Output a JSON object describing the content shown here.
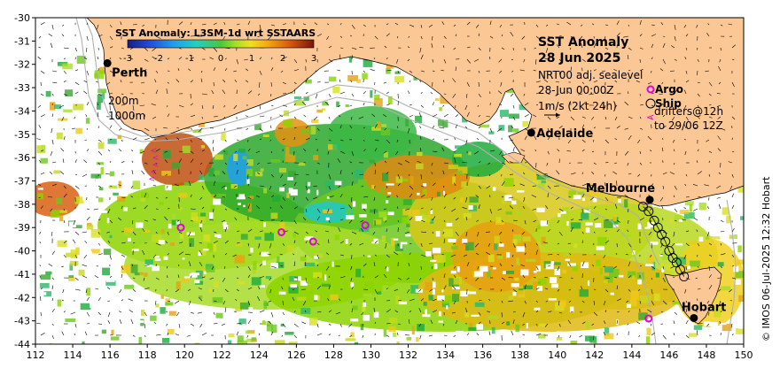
{
  "map": {
    "title": "SST Anomaly",
    "date": "28 Jun 2025",
    "product_line": "NRT00 adj. sealevel",
    "time_line": "28-Jun 00:00Z",
    "current_scale": "1m/s (2kt 24h)",
    "lon_min": 112,
    "lon_max": 150,
    "lat_min": -44,
    "lat_max": -30,
    "lon_ticks": [
      "112",
      "114",
      "116",
      "118",
      "120",
      "122",
      "124",
      "126",
      "128",
      "130",
      "132",
      "134",
      "136",
      "138",
      "140",
      "142",
      "144",
      "146",
      "148",
      "150"
    ],
    "lat_ticks": [
      "-30",
      "-31",
      "-32",
      "-33",
      "-34",
      "-35",
      "-36",
      "-37",
      "-38",
      "-39",
      "-40",
      "-41",
      "-42",
      "-43",
      "-44"
    ],
    "bathymetry_labels": [
      "200m",
      "1000m"
    ],
    "credit": "© IMOS 06-Jul-2025 12:32 Hobart",
    "land_color": "#fbc795",
    "colors": {
      "warm": "#e07000",
      "neutral": "#8cd400",
      "cool": "#00b4c8",
      "argo": "#e000e0"
    }
  },
  "colorbar": {
    "title": "SST Anomaly: L3SM-1d wrt SSTAARS",
    "ticks": [
      "-3",
      "-2",
      "-1",
      "0",
      "1",
      "2",
      "3"
    ],
    "min": -3,
    "max": 3
  },
  "legend": {
    "argo": "Argo",
    "ship": "Ship",
    "drifters_line1": "drifters@12h",
    "drifters_line2": "to 29/06 12Z"
  },
  "cities": [
    {
      "name": "Perth",
      "lon": 115.86,
      "lat": -31.95
    },
    {
      "name": "Adelaide",
      "lon": 138.6,
      "lat": -34.93
    },
    {
      "name": "Melbourne",
      "lon": 144.96,
      "lat": -37.81
    },
    {
      "name": "Hobart",
      "lon": 147.33,
      "lat": -42.88
    }
  ],
  "argo_floats": [
    {
      "lon": 119.8,
      "lat": -39.0
    },
    {
      "lon": 125.2,
      "lat": -39.2
    },
    {
      "lon": 126.9,
      "lat": -39.6
    },
    {
      "lon": 129.7,
      "lat": -38.9
    },
    {
      "lon": 144.9,
      "lat": -42.9
    }
  ],
  "ship_track": [
    {
      "lon": 144.6,
      "lat": -38.1
    },
    {
      "lon": 144.9,
      "lat": -38.3
    },
    {
      "lon": 145.2,
      "lat": -38.7
    },
    {
      "lon": 145.4,
      "lat": -39.0
    },
    {
      "lon": 145.6,
      "lat": -39.3
    },
    {
      "lon": 145.8,
      "lat": -39.6
    },
    {
      "lon": 146.0,
      "lat": -40.0
    },
    {
      "lon": 146.2,
      "lat": -40.3
    },
    {
      "lon": 146.4,
      "lat": -40.5
    },
    {
      "lon": 146.6,
      "lat": -40.8
    },
    {
      "lon": 146.8,
      "lat": -41.1
    }
  ],
  "drifter_track": [
    {
      "lon": 118.3,
      "lat": -35.7
    },
    {
      "lon": 118.4,
      "lat": -36.0
    },
    {
      "lon": 118.4,
      "lat": -36.3
    },
    {
      "lon": 118.3,
      "lat": -36.6
    },
    {
      "lon": 118.2,
      "lat": -36.9
    }
  ]
}
